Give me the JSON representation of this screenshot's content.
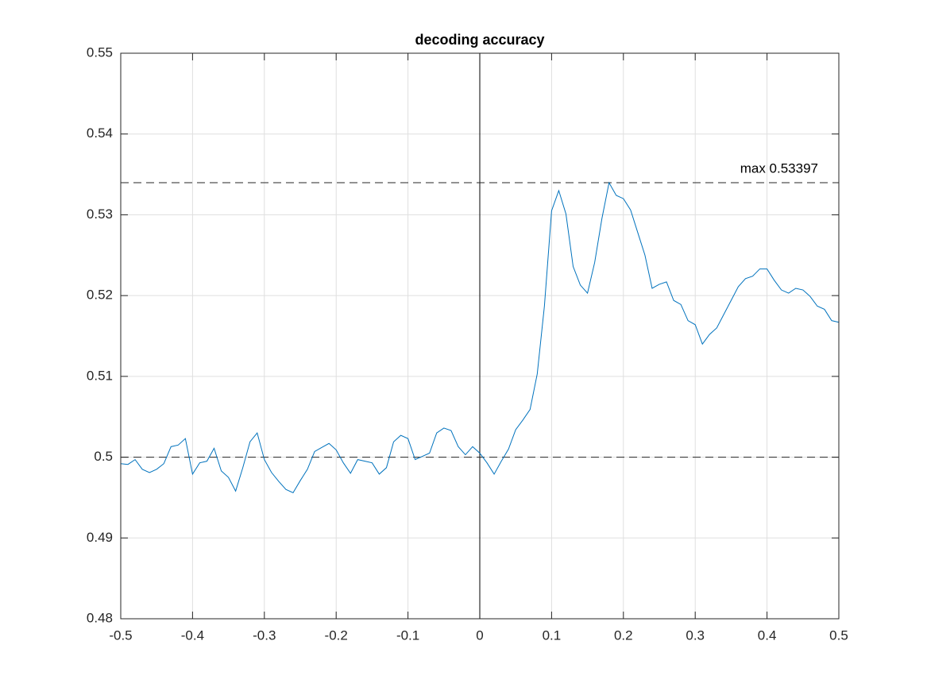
{
  "chart_data": {
    "type": "line",
    "title": "decoding accuracy",
    "x": [
      -0.5,
      -0.49,
      -0.48,
      -0.47,
      -0.46,
      -0.45,
      -0.44,
      -0.43,
      -0.42,
      -0.41,
      -0.4,
      -0.39,
      -0.38,
      -0.37,
      -0.36,
      -0.35,
      -0.34,
      -0.33,
      -0.32,
      -0.31,
      -0.3,
      -0.29,
      -0.28,
      -0.27,
      -0.26,
      -0.25,
      -0.24,
      -0.23,
      -0.22,
      -0.21,
      -0.2,
      -0.19,
      -0.18,
      -0.17,
      -0.16,
      -0.15,
      -0.14,
      -0.13,
      -0.12,
      -0.11,
      -0.1,
      -0.09,
      -0.08,
      -0.07,
      -0.06,
      -0.05,
      -0.04,
      -0.03,
      -0.02,
      -0.01,
      0,
      0.01,
      0.02,
      0.03,
      0.04,
      0.05,
      0.06,
      0.07,
      0.08,
      0.09,
      0.1,
      0.11,
      0.12,
      0.13,
      0.14,
      0.15,
      0.16,
      0.17,
      0.18,
      0.19,
      0.2,
      0.21,
      0.22,
      0.23,
      0.24,
      0.25,
      0.26,
      0.27,
      0.28,
      0.29,
      0.3,
      0.31,
      0.32,
      0.33,
      0.34,
      0.35,
      0.36,
      0.37,
      0.38,
      0.39,
      0.4,
      0.41,
      0.42,
      0.43,
      0.44,
      0.45,
      0.46,
      0.47,
      0.48,
      0.49,
      0.5
    ],
    "series": [
      {
        "color": "#0072bd",
        "values": [
          0.4992,
          0.4991,
          0.4997,
          0.4985,
          0.4981,
          0.4985,
          0.4992,
          0.5013,
          0.5015,
          0.5023,
          0.4979,
          0.4993,
          0.4995,
          0.5011,
          0.4983,
          0.4975,
          0.4958,
          0.4987,
          0.5019,
          0.503,
          0.4997,
          0.4981,
          0.497,
          0.496,
          0.4956,
          0.4971,
          0.4985,
          0.5007,
          0.5012,
          0.5017,
          0.5009,
          0.4993,
          0.498,
          0.4997,
          0.4995,
          0.4993,
          0.4979,
          0.4987,
          0.5019,
          0.5027,
          0.5023,
          0.4997,
          0.5001,
          0.5005,
          0.503,
          0.5036,
          0.5033,
          0.5013,
          0.5003,
          0.5013,
          0.5005,
          0.4993,
          0.4979,
          0.4995,
          0.501,
          0.5034,
          0.5046,
          0.5059,
          0.5103,
          0.5187,
          0.5305,
          0.533,
          0.5301,
          0.5236,
          0.5213,
          0.5203,
          0.5241,
          0.5295,
          0.53397,
          0.5324,
          0.532,
          0.5306,
          0.5278,
          0.525,
          0.5209,
          0.5214,
          0.5217,
          0.5194,
          0.5189,
          0.5169,
          0.5164,
          0.514,
          0.5152,
          0.516,
          0.5177,
          0.5194,
          0.5211,
          0.5221,
          0.5224,
          0.5233,
          0.5233,
          0.5219,
          0.5207,
          0.5203,
          0.5209,
          0.5207,
          0.5199,
          0.5187,
          0.5183,
          0.5169,
          0.5167
        ]
      }
    ],
    "xlim": [
      -0.5,
      0.5
    ],
    "xticks": [
      -0.5,
      -0.4,
      -0.3,
      -0.2,
      -0.1,
      0,
      0.1,
      0.2,
      0.3,
      0.4,
      0.5
    ],
    "ylim": [
      0.48,
      0.55
    ],
    "yticks": [
      0.48,
      0.49,
      0.5,
      0.51,
      0.52,
      0.53,
      0.54,
      0.55
    ],
    "grid": true,
    "chance_level": 0.5,
    "onset": 0,
    "max": {
      "value": 0.53397,
      "label": "max 0.53397"
    }
  }
}
